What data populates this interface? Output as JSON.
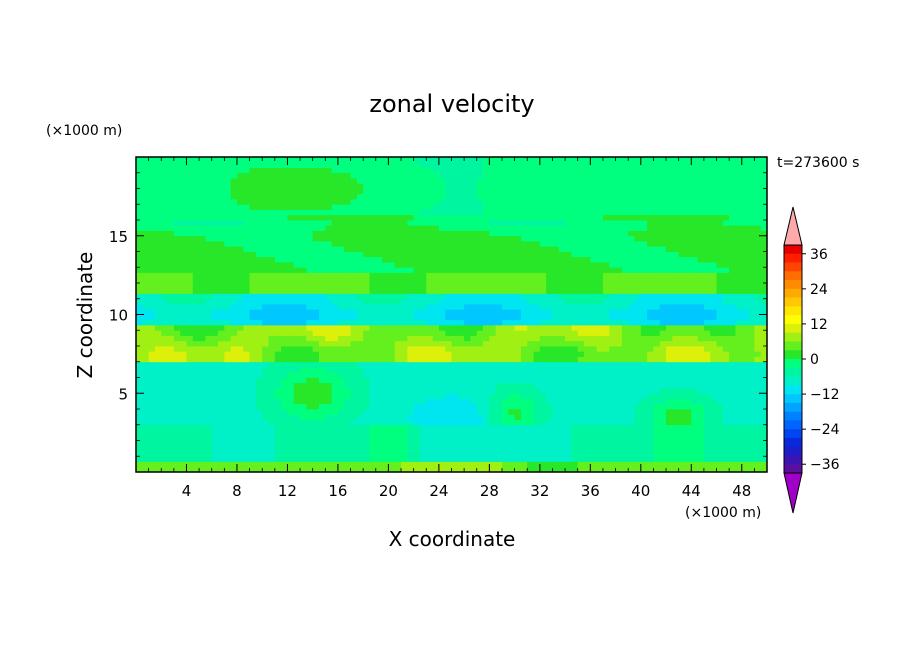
{
  "chart_data": {
    "type": "heatmap",
    "title": "zonal velocity",
    "xlabel": "X coordinate",
    "ylabel": "Z coordinate",
    "x_unit": "(×1000 m)",
    "y_unit": "(×1000 m)",
    "time_label": "t=273600 s",
    "xlim": [
      0,
      50
    ],
    "ylim": [
      0,
      20
    ],
    "x_ticks": [
      4,
      8,
      12,
      16,
      20,
      24,
      28,
      32,
      36,
      40,
      44,
      48
    ],
    "y_ticks": [
      5,
      10,
      15
    ],
    "colorbar": {
      "levels": [
        -42,
        -39,
        -36,
        -33,
        -30,
        -27,
        -24,
        -21,
        -18,
        -15,
        -12,
        -9,
        -6,
        -3,
        0,
        3,
        6,
        9,
        12,
        15,
        18,
        21,
        24,
        27,
        30,
        33,
        36,
        39,
        42
      ],
      "colors": [
        "#a000c8",
        "#5a0fa0",
        "#3c14b4",
        "#1e1ec8",
        "#0a28dc",
        "#0046f0",
        "#0064ff",
        "#0082ff",
        "#00a5ff",
        "#00c8ff",
        "#00e6f0",
        "#00f0c8",
        "#00f5a0",
        "#00ff7f",
        "#28e628",
        "#64f01e",
        "#a0f014",
        "#dcf00a",
        "#ffff00",
        "#ffe600",
        "#ffc800",
        "#ffaa00",
        "#ff8c00",
        "#ff6e00",
        "#ff4600",
        "#ff1e00",
        "#e60000",
        "#ffaaaa"
      ],
      "tick_labels": [
        "36",
        "24",
        "12",
        "0",
        "−12",
        "−24",
        "−36"
      ],
      "tick_values": [
        36,
        24,
        12,
        0,
        -12,
        -24,
        -36
      ],
      "extend": "both"
    },
    "field_description_levels": [
      {
        "z_range": [
          0,
          0.8
        ],
        "value": 6
      },
      {
        "z_range": [
          0.8,
          3
        ],
        "value": -4
      },
      {
        "z_range": [
          3,
          7
        ],
        "value": -7
      },
      {
        "z_range": [
          7,
          9
        ],
        "value": 5
      },
      {
        "z_range": [
          9,
          11
        ],
        "value": -8
      },
      {
        "z_range": [
          11,
          12.5
        ],
        "value": 4
      },
      {
        "z_range": [
          12.5,
          16
        ],
        "value": 1
      },
      {
        "z_range": [
          16,
          20
        ],
        "value": -2
      }
    ]
  }
}
